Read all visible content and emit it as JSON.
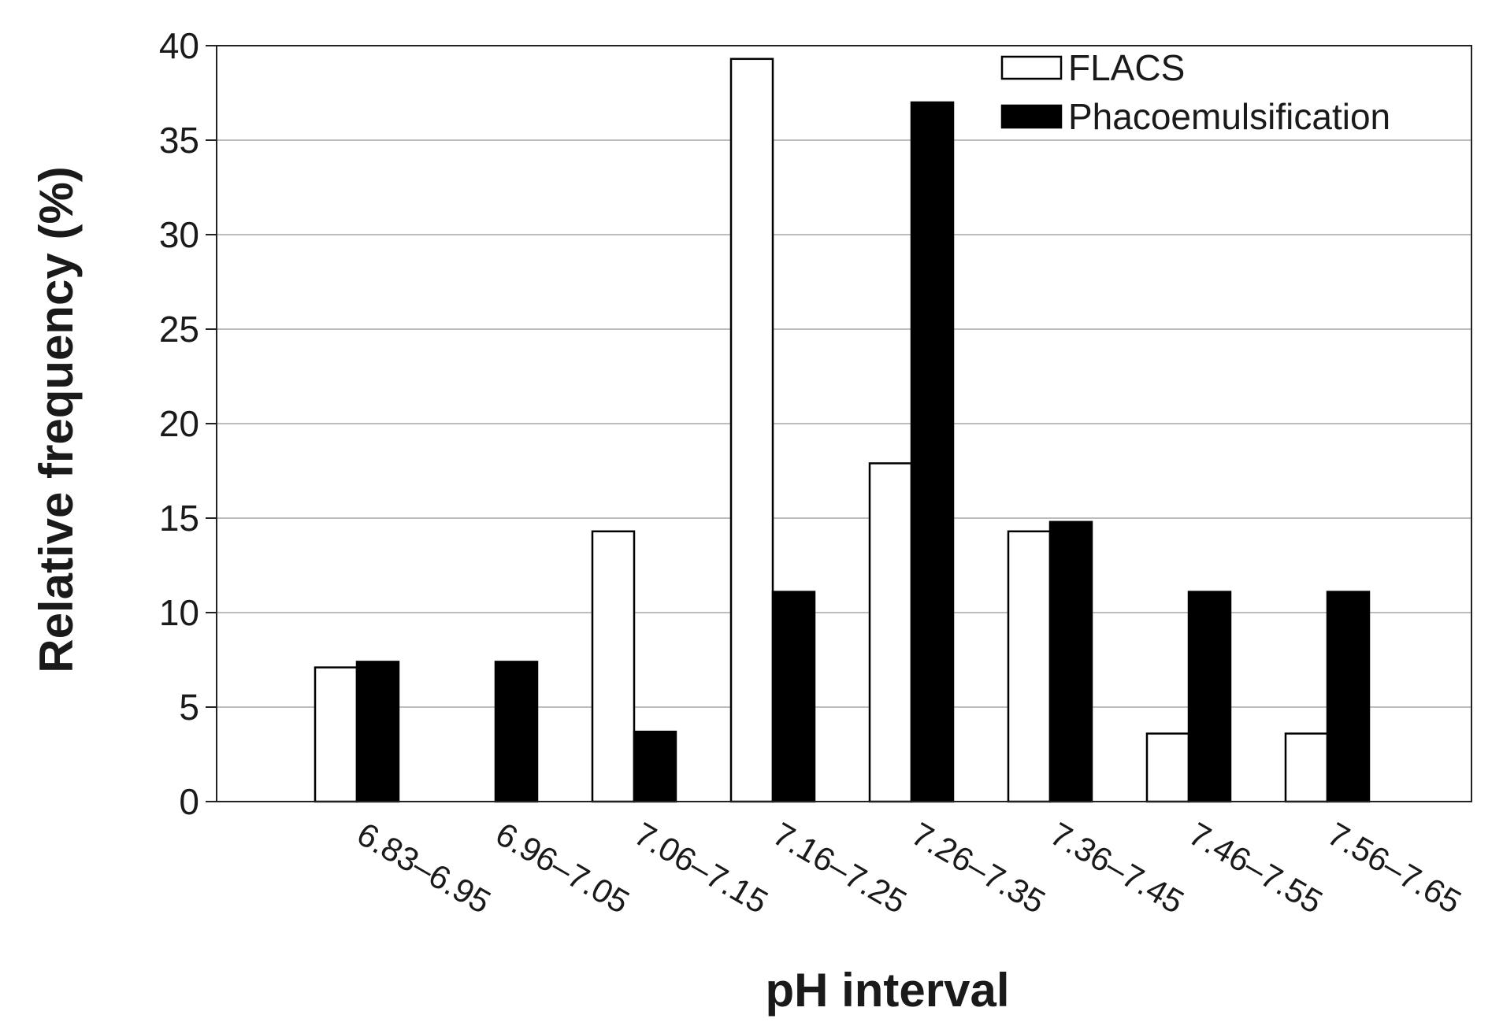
{
  "chart_data": {
    "type": "bar",
    "title": "",
    "xlabel": "pH interval",
    "ylabel": "Relative frequency (%)",
    "ylim": [
      0,
      40
    ],
    "yticks": [
      0,
      5,
      10,
      15,
      20,
      25,
      30,
      35,
      40
    ],
    "grid": true,
    "legend_position": "top-right",
    "categories": [
      "6.83–6.95",
      "6.96–7.05",
      "7.06–7.15",
      "7.16–7.25",
      "7.26–7.35",
      "7.36–7.45",
      "7.46–7.55",
      "7.56–7.65"
    ],
    "series": [
      {
        "name": "FLACS",
        "color": "#ffffff",
        "values": [
          7.1,
          0,
          14.3,
          39.3,
          17.9,
          14.3,
          3.6,
          3.6
        ]
      },
      {
        "name": "Phacoemulsification",
        "color": "#000000",
        "values": [
          7.4,
          7.4,
          3.7,
          11.1,
          37.0,
          14.8,
          11.1,
          11.1
        ]
      }
    ]
  }
}
